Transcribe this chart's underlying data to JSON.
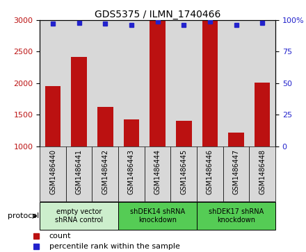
{
  "title": "GDS5375 / ILMN_1740466",
  "samples": [
    "GSM1486440",
    "GSM1486441",
    "GSM1486442",
    "GSM1486443",
    "GSM1486444",
    "GSM1486445",
    "GSM1486446",
    "GSM1486447",
    "GSM1486448"
  ],
  "counts": [
    1950,
    2420,
    1620,
    1420,
    2990,
    1400,
    2990,
    1220,
    2010
  ],
  "percentiles": [
    97,
    98,
    97,
    96,
    99,
    96,
    99,
    96,
    98
  ],
  "ylim_left": [
    1000,
    3000
  ],
  "ylim_right": [
    0,
    100
  ],
  "yticks_left": [
    1000,
    1500,
    2000,
    2500,
    3000
  ],
  "yticks_right": [
    0,
    25,
    50,
    75,
    100
  ],
  "bar_color": "#BB1111",
  "dot_color": "#2222CC",
  "protocol_groups": [
    {
      "label": "empty vector\nshRNA control",
      "start": 0,
      "end": 3,
      "color": "#cceecc"
    },
    {
      "label": "shDEK14 shRNA\nknockdown",
      "start": 3,
      "end": 6,
      "color": "#55cc55"
    },
    {
      "label": "shDEK17 shRNA\nknockdown",
      "start": 6,
      "end": 9,
      "color": "#55cc55"
    }
  ],
  "legend_count_label": "count",
  "legend_percentile_label": "percentile rank within the sample",
  "protocol_label": "protocol"
}
